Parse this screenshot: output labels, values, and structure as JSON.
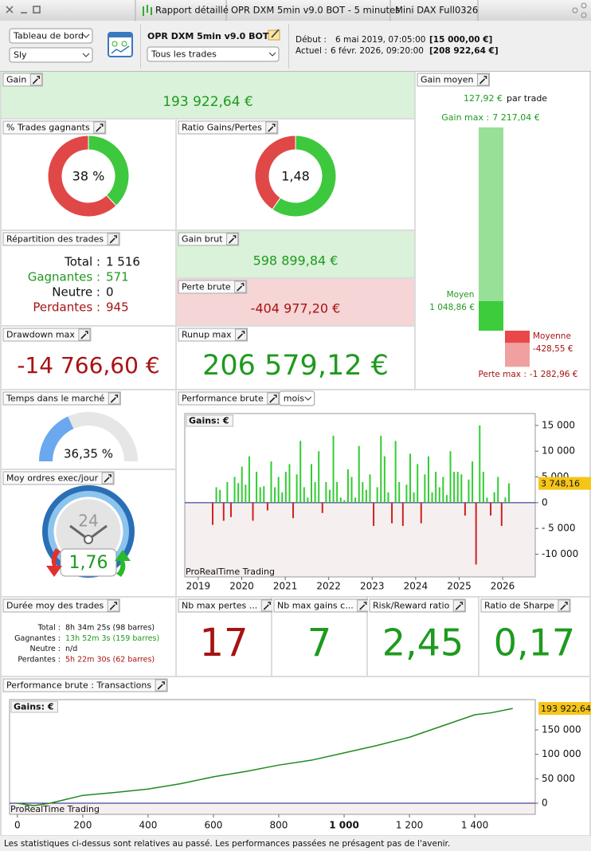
{
  "window": {
    "tabs": [
      "Rapport détaillé",
      "OPR DXM 5min v9.0 BOT - 5 minutes",
      "Mini DAX Full0326"
    ]
  },
  "toolbar": {
    "view": "Tableau de bord",
    "account": "Sly",
    "strategy": "OPR DXM 5min v9.0 BOT",
    "filter": "Tous les trades",
    "start_label": "Début :",
    "start_date": "6 mai 2019, 07:05:00",
    "start_capital": "[15 000,00 €]",
    "current_label": "Actuel :",
    "current_date": "6 févr. 2026, 09:20:00",
    "current_capital": "[208 922,64 €]"
  },
  "panels": {
    "gain": {
      "title": "Gain",
      "value": "193 922,64 €"
    },
    "avg_gain": {
      "title": "Gain moyen",
      "per_trade": "127,92 €",
      "per_trade_unit": "par trade",
      "max_gain": {
        "name": "Gain max :",
        "value": 7217.04,
        "label": "7 217,04 €"
      },
      "avg_win": {
        "name": "Moyen",
        "value": 1048.86,
        "label": "1 048,86 €"
      },
      "avg_loss": {
        "name": "Moyenne",
        "value": -428.55,
        "label": "-428,55 €"
      },
      "max_loss": {
        "name": "Perte max :",
        "value": -1282.96,
        "label": "-1 282,96 €"
      }
    },
    "win_rate": {
      "title": "% Trades gagnants",
      "value": 38,
      "label": "38 %"
    },
    "profit_ratio": {
      "title": "Ratio Gains/Pertes",
      "value": 1.48,
      "label": "1,48"
    },
    "trades": {
      "title": "Répartition des trades",
      "rows": [
        [
          "Total :",
          "1 516"
        ],
        [
          "Gagnantes :",
          "571"
        ],
        [
          "Neutre :",
          "0"
        ],
        [
          "Perdantes :",
          "945"
        ]
      ]
    },
    "gross_profit": {
      "title": "Gain brut",
      "value": "598 899,84 €"
    },
    "gross_loss": {
      "title": "Perte brute",
      "value": "-404 977,20 €"
    },
    "drawdown": {
      "title": "Drawdown max",
      "value": "-14 766,60 €"
    },
    "runup": {
      "title": "Runup max",
      "value": "206 579,12 €"
    },
    "market_time": {
      "title": "Temps dans le marché",
      "value": 36.35,
      "label": "36,35 %"
    },
    "orders_per_day": {
      "title": "Moy ordres exec/jour",
      "icon": "24",
      "value": "1,76"
    },
    "perf_monthly": {
      "title": "Performance brute",
      "period": "mois"
    },
    "durations": {
      "title": "Durée moy des trades",
      "rows": [
        [
          "Total :",
          "8h 34m 25s (98 barres)"
        ],
        [
          "Gagnantes :",
          "13h 52m 3s (159 barres)"
        ],
        [
          "Neutre :",
          "n/d"
        ],
        [
          "Perdantes :",
          "5h 22m 30s (62 barres)"
        ]
      ]
    },
    "max_losses": {
      "title": "Nb max pertes ...",
      "value": "17"
    },
    "max_gains": {
      "title": "Nb max gains c...",
      "value": "7"
    },
    "risk_reward": {
      "title": "Risk/Reward ratio",
      "value": "2,45"
    },
    "sharpe": {
      "title": "Ratio de Sharpe",
      "value": "0,17"
    },
    "perf_trades": {
      "title": "Performance brute : Transactions"
    }
  },
  "chart_data": [
    {
      "type": "bar",
      "y_label": "Gains: €",
      "watermark": "ProRealTime Trading",
      "categories": [
        null,
        null,
        null,
        null,
        null,
        null,
        null,
        null,
        null,
        null,
        null,
        null,
        null,
        null,
        null,
        null,
        null,
        null,
        null,
        null,
        null,
        null,
        null,
        null,
        null,
        null,
        null,
        null,
        null,
        null,
        null,
        null,
        null,
        null,
        null,
        null,
        null,
        null,
        null,
        null,
        null,
        null,
        null,
        null,
        null,
        null,
        null,
        null,
        null,
        null,
        null,
        null,
        null,
        null,
        null,
        null,
        null,
        null,
        null,
        null,
        null,
        null,
        null,
        null,
        null,
        null,
        null,
        null,
        null,
        null,
        null,
        null,
        null,
        null,
        null,
        null,
        null,
        null,
        null,
        null,
        null,
        null
      ],
      "values": [
        -4300,
        3000,
        2500,
        -3500,
        4000,
        -2800,
        5000,
        3800,
        7000,
        3500,
        9000,
        -3500,
        6000,
        3000,
        3200,
        -1500,
        8000,
        3000,
        5000,
        2000,
        6000,
        7500,
        -3000,
        5500,
        12000,
        3000,
        1000,
        7500,
        4000,
        10000,
        -2000,
        4000,
        2500,
        13000,
        4000,
        1000,
        500,
        6500,
        5000,
        1000,
        11000,
        4000,
        2500,
        5500,
        -4500,
        3000,
        13000,
        9000,
        2000,
        -4000,
        12000,
        4000,
        -4500,
        3500,
        9500,
        2000,
        7500,
        -4000,
        5500,
        9000,
        2000,
        6000,
        3000,
        5000,
        1500,
        10000,
        6000,
        6000,
        5500,
        -2500,
        4500,
        8000,
        -12000,
        15000,
        6000,
        1000,
        -2500,
        2000,
        5000,
        -4500,
        1000,
        3748.16
      ],
      "colors": {
        "positive": "#33cc33",
        "negative": "#cc2222"
      },
      "ylim": [
        -14400,
        17300
      ],
      "yticks": [
        {
          "value": 15000,
          "label": "15 000"
        },
        {
          "value": 10000,
          "label": "10 000"
        },
        {
          "value": 5000,
          "label": "5 000"
        },
        0,
        {
          "value": -5000,
          "label": "- 5 000"
        },
        {
          "value": -10000,
          "label": "-10 000"
        }
      ],
      "xlim": [
        2018.69,
        2026.75
      ],
      "xticks": [
        2019,
        2020,
        2021,
        2022,
        2023,
        2024,
        2025,
        2026
      ],
      "last_value": {
        "value": 3748.16,
        "label": "3 748,16"
      }
    },
    {
      "type": "line",
      "y_label": "Gains: €",
      "watermark": "ProRealTime Trading",
      "x": [
        0,
        50,
        100,
        150,
        200,
        300,
        400,
        500,
        600,
        700,
        800,
        900,
        1000,
        1100,
        1200,
        1300,
        1400,
        1450,
        1516
      ],
      "values": [
        0,
        -5000,
        0,
        8000,
        16000,
        22000,
        29000,
        40000,
        54000,
        65000,
        78000,
        88000,
        103000,
        118000,
        135000,
        158000,
        181000,
        185000,
        193922.64
      ],
      "color": "#1f8a1f",
      "xlim": [
        -24,
        1585
      ],
      "ylim": [
        -22800,
        212000
      ],
      "xticks": [
        0,
        200,
        400,
        600,
        800,
        {
          "value": 1000,
          "label": "1 000"
        },
        {
          "value": 1200,
          "label": "1 200"
        },
        {
          "value": 1400,
          "label": "1 400"
        }
      ],
      "yticks": [
        0,
        {
          "value": 50000,
          "label": "50 000"
        },
        {
          "value": 100000,
          "label": "100 000"
        },
        {
          "value": 150000,
          "label": "150 000"
        }
      ],
      "last_value": {
        "value": 193922.64,
        "label": "193 922,64"
      }
    }
  ],
  "footer": "Les statistiques ci-dessus sont relatives au passé. Les performances passées ne présagent pas de l'avenir."
}
